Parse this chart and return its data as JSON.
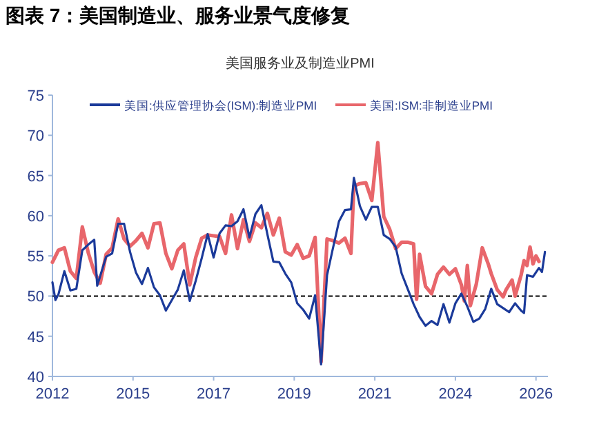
{
  "chart_data": {
    "type": "line",
    "title": "图表 7：美国制造业、服务业景气度修复",
    "subtitle": "美国服务业及制造业PMI",
    "xlim": [
      "2012-10",
      "2026-08"
    ],
    "xticks": [
      {
        "value": "2012-10",
        "label": "2012"
      },
      {
        "value": "2015-01",
        "label": "2015"
      },
      {
        "value": "2017-04",
        "label": "2017"
      },
      {
        "value": "2019-07",
        "label": "2019"
      },
      {
        "value": "2021-10",
        "label": "2021"
      },
      {
        "value": "2024-01",
        "label": "2024"
      },
      {
        "value": "2026-04",
        "label": "2026"
      }
    ],
    "ylim": [
      40,
      75
    ],
    "yticks": [
      40,
      45,
      50,
      55,
      60,
      65,
      70,
      75
    ],
    "grid": false,
    "legend": "top",
    "marker": "none",
    "line_style": "solid",
    "ref_lines": [
      {
        "axis": "y",
        "value": 50,
        "color": "#000000",
        "line_style": "dashed"
      }
    ],
    "series": [
      {
        "name": "美国:供应管理协会(ISM):制造业PMI",
        "color": "#1b3a9a",
        "x": [
          "2012-10",
          "2012-11",
          "2012-12",
          "2013-02",
          "2013-04",
          "2013-06",
          "2013-08",
          "2013-10",
          "2013-12",
          "2014-01",
          "2014-04",
          "2014-06",
          "2014-08",
          "2014-10",
          "2014-12",
          "2015-02",
          "2015-04",
          "2015-06",
          "2015-08",
          "2015-10",
          "2015-12",
          "2016-02",
          "2016-04",
          "2016-06",
          "2016-08",
          "2016-10",
          "2016-12",
          "2017-02",
          "2017-04",
          "2017-06",
          "2017-08",
          "2017-10",
          "2017-12",
          "2018-02",
          "2018-04",
          "2018-06",
          "2018-08",
          "2018-10",
          "2018-12",
          "2019-02",
          "2019-04",
          "2019-06",
          "2019-08",
          "2019-10",
          "2019-12",
          "2020-02",
          "2020-04",
          "2020-06",
          "2020-08",
          "2020-10",
          "2020-12",
          "2021-02",
          "2021-03",
          "2021-05",
          "2021-07",
          "2021-09",
          "2021-11",
          "2022-01",
          "2022-03",
          "2022-05",
          "2022-07",
          "2022-09",
          "2022-11",
          "2023-01",
          "2023-03",
          "2023-05",
          "2023-07",
          "2023-09",
          "2023-11",
          "2024-01",
          "2024-03",
          "2024-05",
          "2024-07",
          "2024-09",
          "2024-11",
          "2025-01",
          "2025-03",
          "2025-05",
          "2025-07",
          "2025-09",
          "2025-11",
          "2025-12",
          "2026-01",
          "2026-03",
          "2026-05",
          "2026-06",
          "2026-07"
        ],
        "values": [
          51.7,
          49.5,
          50.2,
          53.1,
          50.7,
          50.9,
          55.7,
          56.4,
          57.0,
          51.3,
          54.9,
          55.3,
          59.0,
          59.0,
          55.5,
          52.9,
          51.5,
          53.5,
          51.1,
          50.1,
          48.2,
          49.5,
          50.8,
          53.2,
          49.4,
          51.9,
          54.7,
          57.7,
          54.8,
          57.8,
          58.8,
          58.7,
          59.3,
          60.8,
          57.3,
          60.2,
          61.3,
          57.7,
          54.3,
          54.2,
          52.8,
          51.7,
          49.1,
          48.3,
          47.2,
          50.1,
          41.5,
          52.6,
          56.0,
          59.3,
          60.7,
          60.8,
          64.7,
          61.2,
          59.5,
          61.1,
          61.1,
          57.6,
          57.1,
          56.1,
          52.8,
          50.9,
          49.0,
          47.4,
          46.3,
          46.9,
          46.4,
          49.0,
          46.7,
          49.1,
          50.3,
          48.7,
          46.8,
          47.2,
          48.4,
          50.9,
          49.0,
          48.5,
          48.0,
          49.1,
          48.2,
          47.9,
          52.6,
          52.4,
          53.5,
          53.0,
          55.5
        ]
      },
      {
        "name": "美国:ISM:非制造业PMI",
        "color": "#e8666b",
        "x": [
          "2012-10",
          "2012-12",
          "2013-02",
          "2013-04",
          "2013-06",
          "2013-08",
          "2013-10",
          "2013-12",
          "2014-02",
          "2014-04",
          "2014-06",
          "2014-08",
          "2014-10",
          "2014-12",
          "2015-02",
          "2015-04",
          "2015-06",
          "2015-08",
          "2015-10",
          "2015-12",
          "2016-02",
          "2016-04",
          "2016-06",
          "2016-08",
          "2016-10",
          "2016-12",
          "2017-02",
          "2017-04",
          "2017-06",
          "2017-08",
          "2017-10",
          "2017-12",
          "2018-02",
          "2018-04",
          "2018-06",
          "2018-08",
          "2018-10",
          "2018-12",
          "2019-02",
          "2019-04",
          "2019-06",
          "2019-08",
          "2019-10",
          "2019-12",
          "2020-02",
          "2020-04",
          "2020-06",
          "2020-08",
          "2020-10",
          "2020-12",
          "2021-02",
          "2021-03",
          "2021-05",
          "2021-07",
          "2021-09",
          "2021-11",
          "2022-01",
          "2022-03",
          "2022-05",
          "2022-07",
          "2022-09",
          "2022-11",
          "2022-12",
          "2023-01",
          "2023-03",
          "2023-05",
          "2023-07",
          "2023-09",
          "2023-11",
          "2024-01",
          "2024-03",
          "2024-04",
          "2024-05",
          "2024-06",
          "2024-08",
          "2024-10",
          "2024-12",
          "2025-01",
          "2025-03",
          "2025-05",
          "2025-06",
          "2025-08",
          "2025-09",
          "2025-11",
          "2025-12",
          "2026-01",
          "2026-02",
          "2026-03",
          "2026-04",
          "2026-05"
        ],
        "values": [
          54.2,
          55.7,
          56.0,
          53.1,
          52.2,
          58.6,
          55.4,
          53.0,
          51.6,
          55.2,
          56.0,
          59.6,
          57.1,
          56.2,
          56.9,
          57.8,
          56.0,
          59.0,
          59.1,
          55.3,
          53.4,
          55.7,
          56.5,
          51.4,
          54.8,
          57.2,
          57.6,
          57.5,
          57.4,
          55.3,
          60.1,
          55.9,
          59.5,
          56.8,
          59.1,
          58.5,
          60.3,
          57.6,
          59.7,
          55.5,
          55.1,
          56.4,
          54.7,
          55.0,
          57.3,
          41.8,
          57.1,
          56.9,
          56.6,
          57.2,
          55.3,
          63.7,
          64.0,
          64.1,
          61.9,
          69.1,
          59.9,
          58.3,
          55.9,
          56.7,
          56.7,
          56.5,
          49.6,
          55.2,
          51.2,
          50.3,
          52.7,
          53.6,
          52.7,
          53.4,
          51.4,
          49.4,
          53.8,
          48.8,
          51.5,
          56.0,
          54.0,
          52.8,
          50.8,
          49.9,
          50.8,
          52.0,
          50.0,
          52.6,
          54.4,
          53.8,
          56.1,
          54.0,
          55.0,
          54.3
        ]
      }
    ]
  }
}
